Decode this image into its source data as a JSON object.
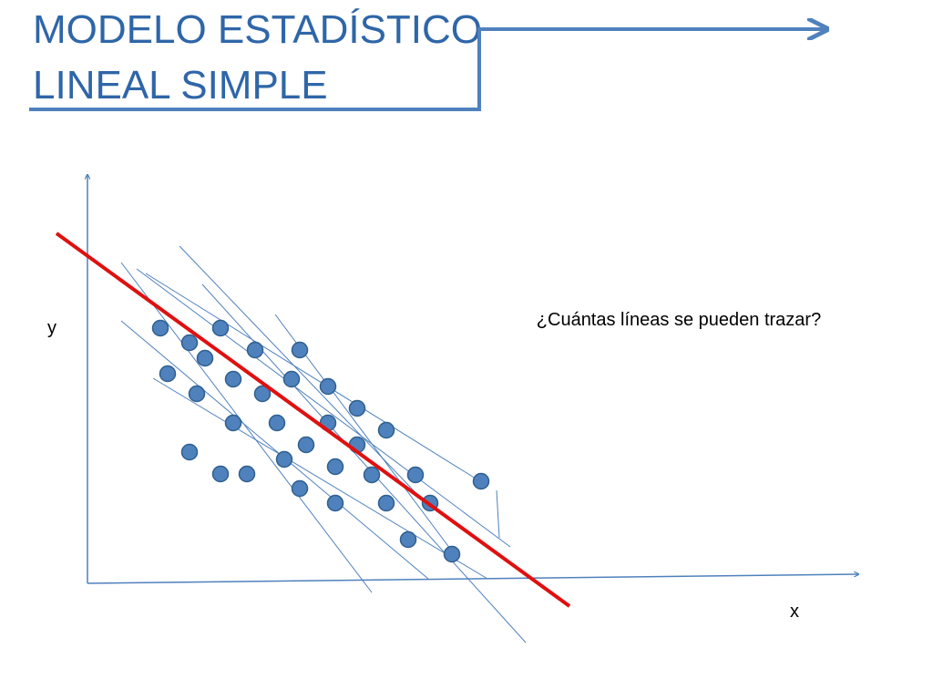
{
  "title": {
    "line1": "MODELO ESTADÍSTICO",
    "line2": "LINEAL SIMPLE"
  },
  "diagram": {
    "y_label": "y",
    "x_label": "x",
    "question": "¿Cuántas líneas se pueden trazar?"
  }
}
